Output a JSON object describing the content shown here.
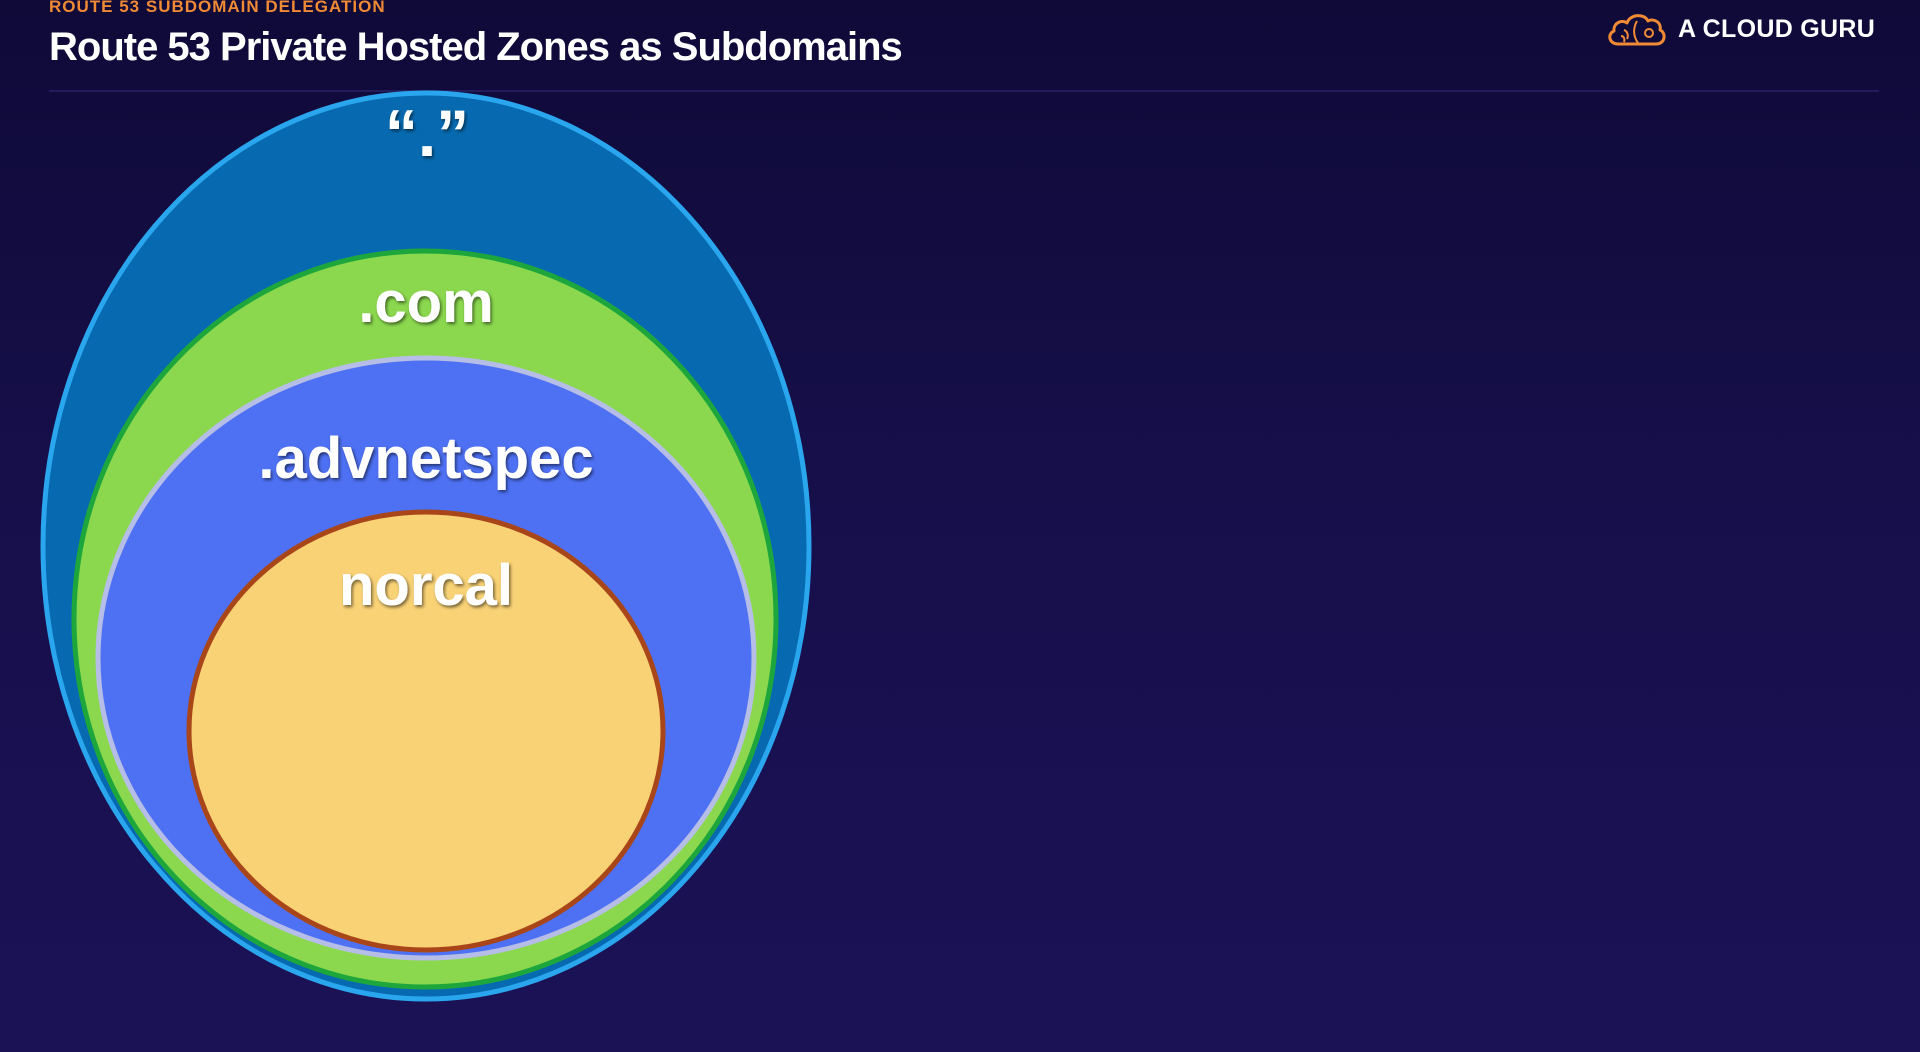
{
  "header": {
    "section_label": "ROUTE 53 SUBDOMAIN DELEGATION",
    "title": "Route 53 Private Hosted Zones as Subdomains"
  },
  "brand": {
    "name": "A CLOUD GURU",
    "logo_icon": "cloud-icon"
  },
  "diagram": {
    "zones": [
      {
        "label": "“.”",
        "fill": "#076ab0",
        "stroke": "#2aa6ee"
      },
      {
        "label": ".com",
        "fill": "#8bd84e",
        "stroke": "#1da63c"
      },
      {
        "label": ".advnetspec",
        "fill": "#4e71f4",
        "stroke": "#b6bde6"
      },
      {
        "label": "norcal",
        "fill": "#f9d276",
        "stroke": "#a8461a"
      }
    ]
  },
  "colors": {
    "background": "#150e48",
    "accent_orange": "#f08a34"
  }
}
